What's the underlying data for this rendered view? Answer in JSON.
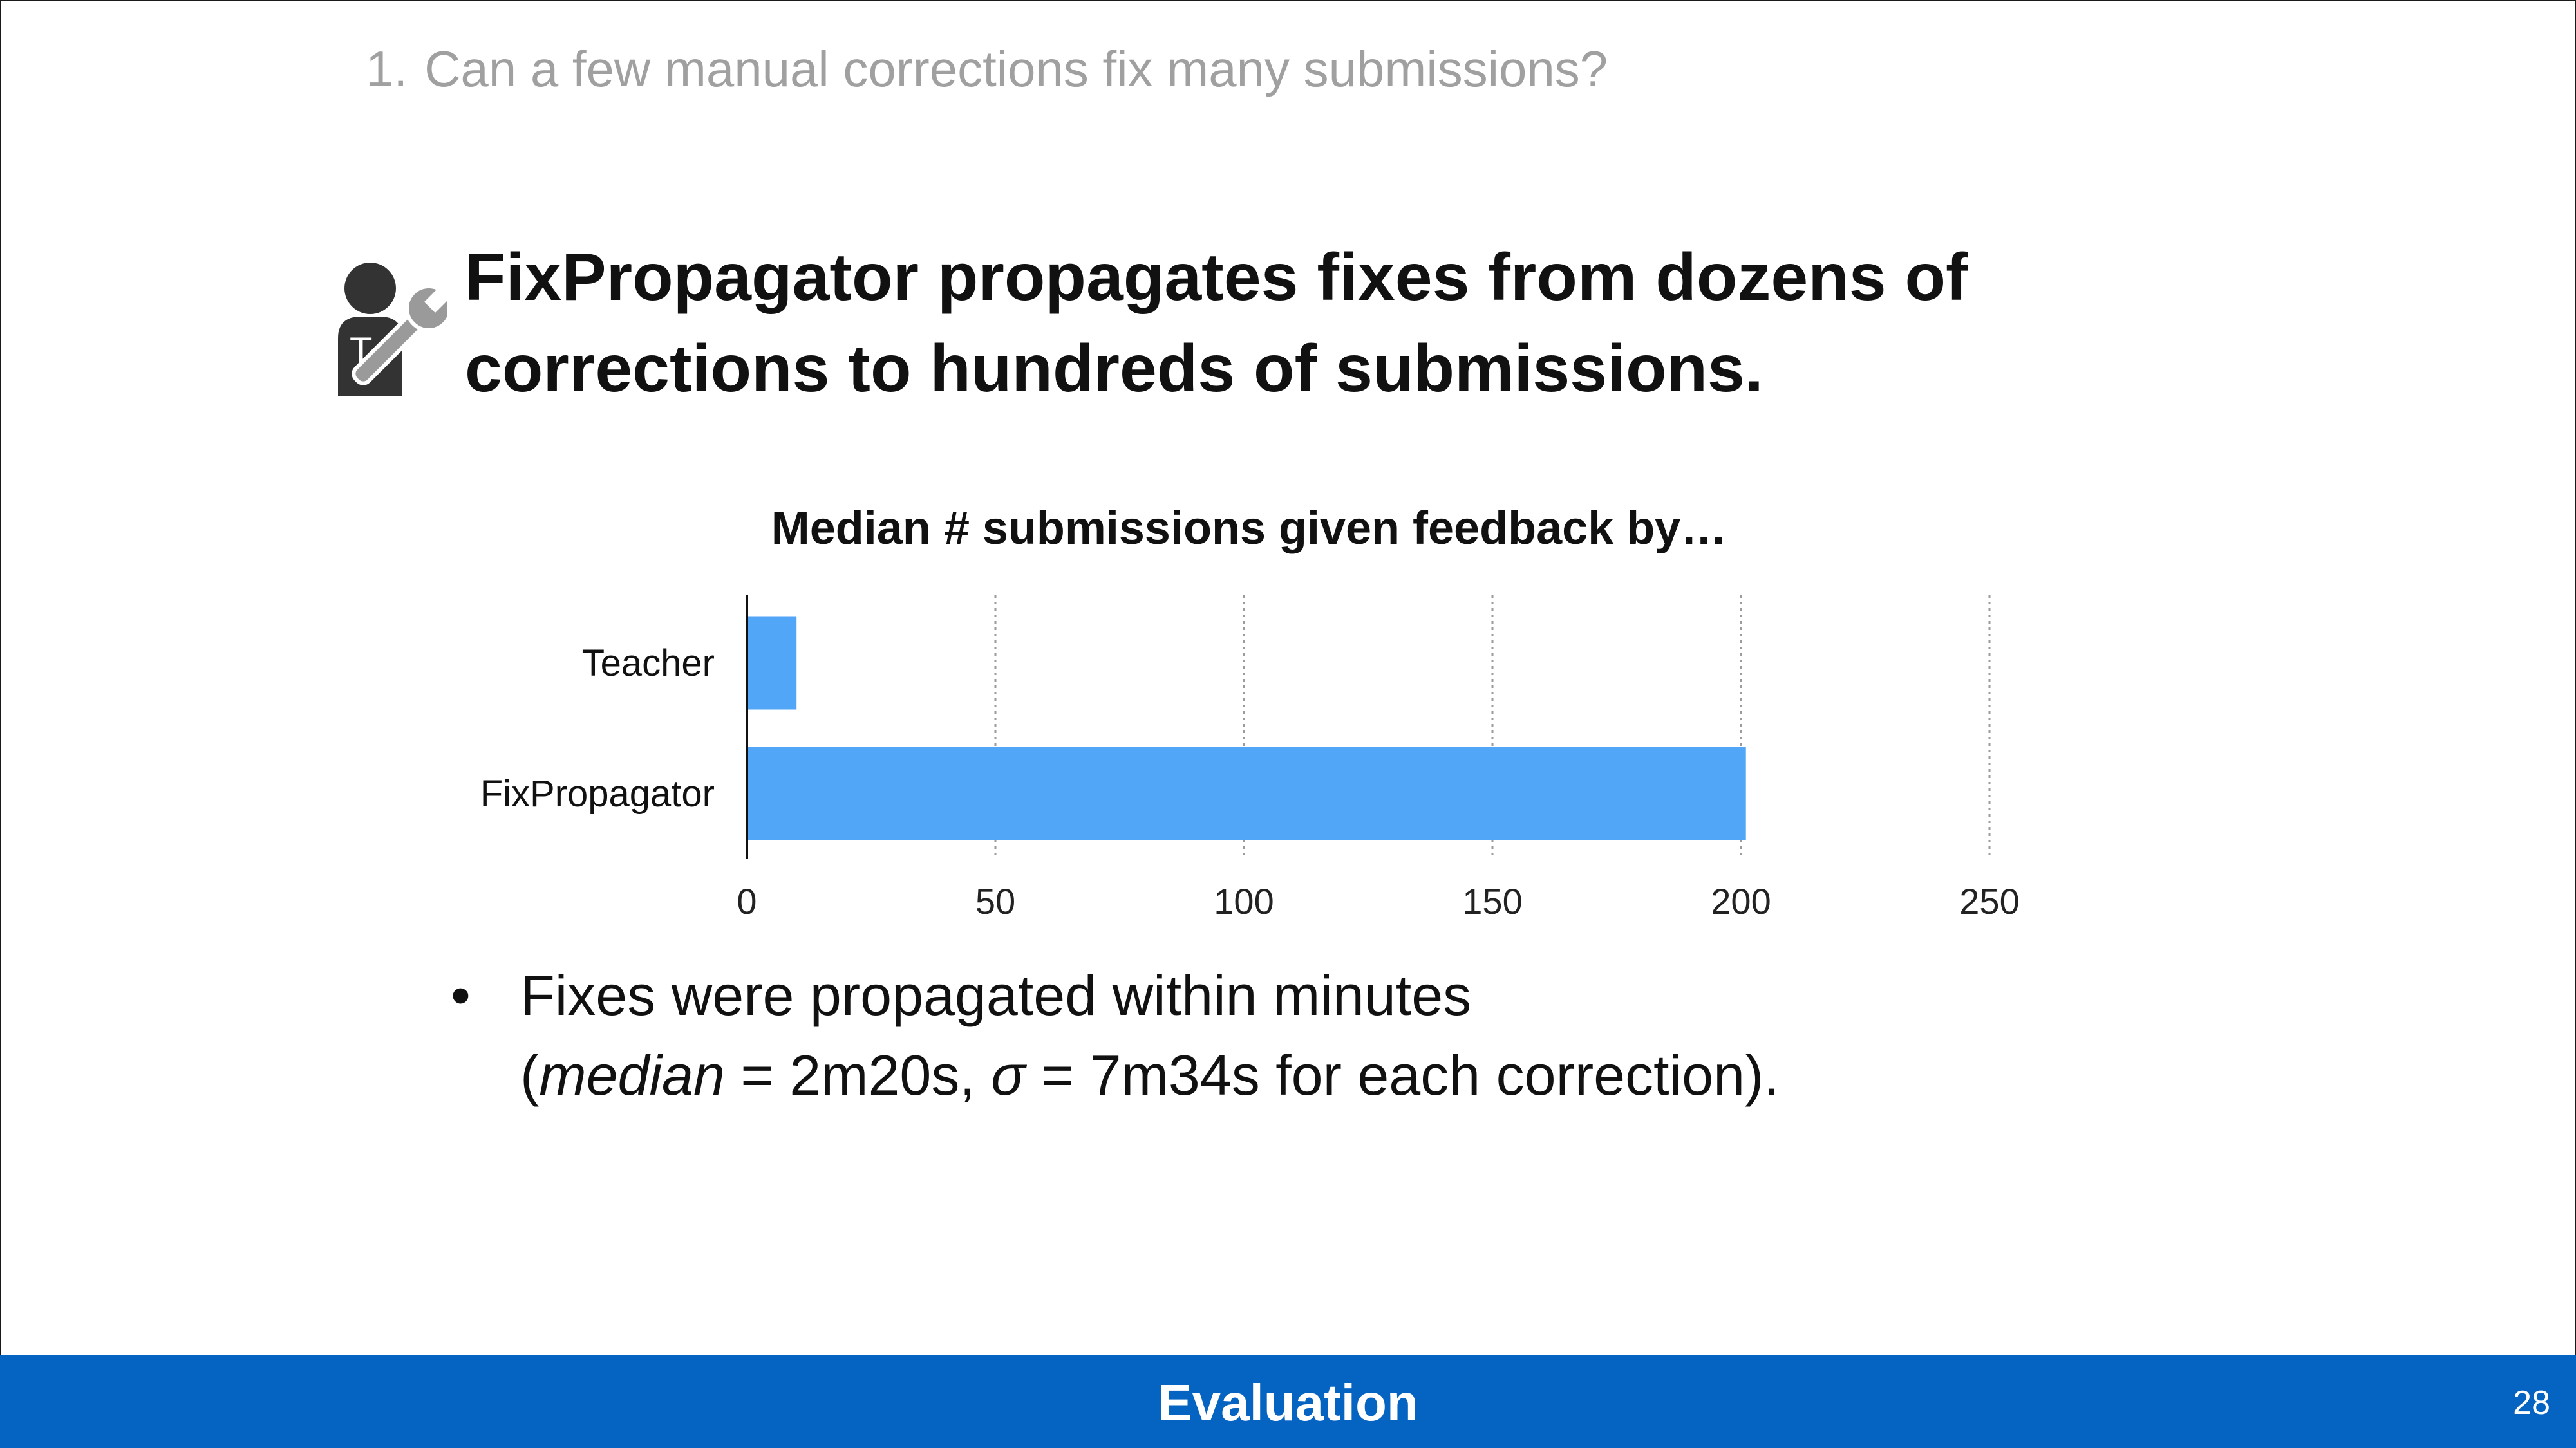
{
  "question": {
    "number": "1.",
    "text": "Can a few manual corrections fix many submissions?"
  },
  "headline": {
    "line1": "FixPropagator propagates fixes from dozens of",
    "line2": "corrections to hundreds of submissions.",
    "icon": "teacher-wrench-icon"
  },
  "chart_data": {
    "type": "bar",
    "orientation": "horizontal",
    "title": "Median # submissions given feedback by…",
    "categories": [
      "Teacher",
      "FixPropagator"
    ],
    "values": [
      10,
      201
    ],
    "xlim": [
      0,
      250
    ],
    "ticks": [
      "0",
      "50",
      "100",
      "150",
      "200",
      "250"
    ],
    "grid": true,
    "color": "#51a6f8"
  },
  "bullet": {
    "symbol": "•",
    "line1": "Fixes were propagated within minutes",
    "line2_open": "(",
    "line2_median": "median",
    "line2_mid": " = 2m20s, ",
    "line2_sigma": "σ",
    "line2_end": " = 7m34s for each correction)."
  },
  "footer": {
    "title": "Evaluation",
    "page": "28",
    "color": "#0563c1"
  }
}
